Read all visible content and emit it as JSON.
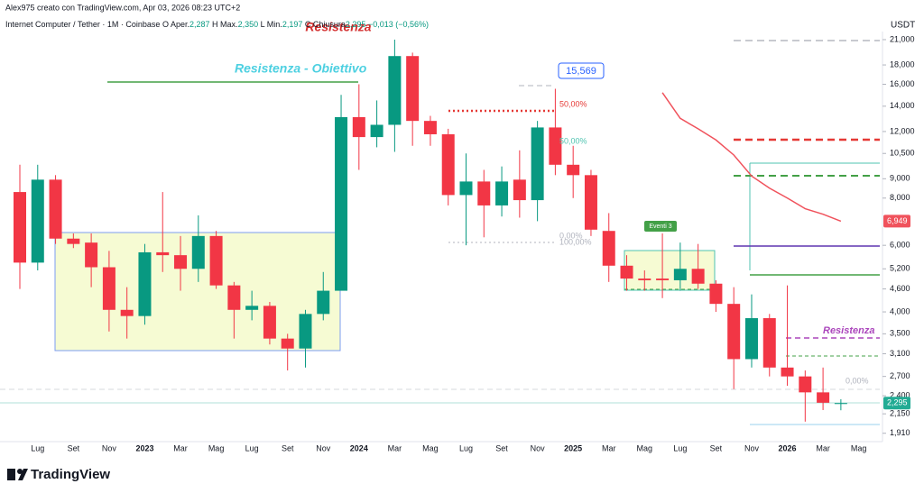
{
  "header": {
    "credit": "Alex975 creato con TradingView.com, Apr 03, 2026 08:23 UTC+2",
    "symbol": "Internet Computer / Tether · 1M · Coinbase",
    "o": "O",
    "o_name": "Aper.",
    "o_val": "2,287",
    "h": "H",
    "h_name": "Max.",
    "h_val": "2,350",
    "l": "L",
    "l_name": "Min.",
    "l_val": "2,197",
    "c": "C",
    "c_name": "Chiusura",
    "c_val": "2,295",
    "change": "−0,013 (−0,56%)"
  },
  "logo": "TradingView",
  "chart_data": {
    "type": "candlestick",
    "y_unit": "USDT",
    "log": true,
    "ylim": [
      1815,
      22060
    ],
    "yticks": [
      {
        "value": 21000,
        "label": "21,000"
      },
      {
        "value": 18000,
        "label": "18,000"
      },
      {
        "value": 16000,
        "label": "16,000"
      },
      {
        "value": 14000,
        "label": "14,000"
      },
      {
        "value": 12000,
        "label": "12,000"
      },
      {
        "value": 10500,
        "label": "10,500"
      },
      {
        "value": 9000,
        "label": "9,000"
      },
      {
        "value": 8000,
        "label": "8,000"
      },
      {
        "value": 6000,
        "label": "6,000"
      },
      {
        "value": 5200,
        "label": "5,200"
      },
      {
        "value": 4600,
        "label": "4,600"
      },
      {
        "value": 4000,
        "label": "4,000"
      },
      {
        "value": 3500,
        "label": "3,500"
      },
      {
        "value": 3100,
        "label": "3,100"
      },
      {
        "value": 2700,
        "label": "2,700"
      },
      {
        "value": 2400,
        "label": "2,400"
      },
      {
        "value": 2150,
        "label": "2,150"
      },
      {
        "value": 1910,
        "label": "1,910"
      }
    ],
    "categories": [
      null,
      "Lug",
      null,
      "Set",
      null,
      "Nov",
      null,
      "2023",
      null,
      "Mar",
      null,
      "Mag",
      null,
      "Lug",
      null,
      "Set",
      null,
      "Nov",
      null,
      "2024",
      null,
      "Mar",
      null,
      "Mag",
      null,
      "Lug",
      null,
      "Set",
      null,
      "Nov",
      null,
      "2025",
      null,
      "Mar",
      null,
      "Mag",
      null,
      "Lug",
      null,
      "Set",
      null,
      "Nov",
      null,
      "2026",
      null,
      "Mar",
      null,
      "Mag"
    ],
    "up_color": "#089981",
    "down_color": "#f23645",
    "open": [
      8300,
      5400,
      8950,
      6250,
      6100,
      5250,
      4050,
      3900,
      5750,
      5650,
      5200,
      6350,
      4700,
      4050,
      4150,
      3400,
      3200,
      3950,
      4550,
      13100,
      11600,
      12500,
      19000,
      12800,
      11800,
      8150,
      8850,
      7650,
      8950,
      7900,
      12300,
      9800,
      9200,
      6550,
      5300,
      4900,
      4900,
      4850,
      5200,
      4750,
      4200,
      3000,
      3850,
      2850,
      2700,
      2450,
      2287,
      null
    ],
    "high": [
      9800,
      9800,
      9200,
      6450,
      6450,
      5800,
      4650,
      6050,
      8300,
      6350,
      7200,
      6550,
      4800,
      4550,
      4250,
      3500,
      4050,
      5100,
      15000,
      16000,
      14500,
      21000,
      19400,
      13200,
      12200,
      10500,
      9500,
      9700,
      10700,
      12800,
      15569,
      11000,
      9500,
      7300,
      5650,
      5150,
      6450,
      6100,
      6050,
      4850,
      4650,
      4450,
      3950,
      4700,
      2800,
      2850,
      2350,
      null
    ],
    "low": [
      4600,
      5150,
      6050,
      5900,
      4650,
      3550,
      3400,
      3700,
      5100,
      4550,
      4800,
      4600,
      3400,
      3800,
      3280,
      2800,
      2850,
      3800,
      4600,
      9500,
      10900,
      10600,
      11000,
      11000,
      7650,
      6000,
      6300,
      7150,
      7100,
      6950,
      9200,
      8000,
      6350,
      4800,
      4550,
      4550,
      4350,
      4550,
      4600,
      4000,
      2500,
      2850,
      2700,
      2550,
      2050,
      2200,
      2197,
      null
    ],
    "close": [
      5400,
      8950,
      6250,
      6050,
      5250,
      4050,
      3900,
      5750,
      5650,
      5200,
      6350,
      4700,
      4050,
      4150,
      3400,
      3200,
      3950,
      4550,
      13100,
      11600,
      12500,
      19000,
      12800,
      11800,
      8150,
      8850,
      7650,
      8850,
      7900,
      12300,
      9800,
      9200,
      6600,
      5300,
      4900,
      4850,
      4850,
      5200,
      4750,
      4200,
      3000,
      3850,
      2850,
      2700,
      2450,
      2300,
      2295,
      null
    ],
    "line": {
      "color": "#f0525c",
      "values": [
        null,
        null,
        null,
        null,
        null,
        null,
        null,
        null,
        null,
        null,
        null,
        null,
        null,
        null,
        null,
        null,
        null,
        null,
        null,
        null,
        null,
        null,
        null,
        null,
        null,
        null,
        null,
        null,
        null,
        null,
        null,
        null,
        null,
        null,
        null,
        null,
        15200,
        13000,
        12200,
        11400,
        10400,
        9150,
        8500,
        8000,
        7500,
        7250,
        6949,
        null
      ]
    },
    "price_labels": [
      {
        "value": 6949,
        "label": "6,949",
        "color": "#f0525c"
      },
      {
        "value": 2295,
        "label": "2,295",
        "color": "#22ab94"
      }
    ],
    "annotations": {
      "resistenza_top": "Resistenza",
      "obiettivo": "Resistenza - Obiettivo",
      "peak": "15,569",
      "fib50_red": "50,00%",
      "fib50_teal": "50,00%",
      "fib0": "0,00%",
      "fib100": "100,00%",
      "eventi": "Eventi 3",
      "resistenza_right": "Resistenza",
      "fib0_right": "0,00%"
    }
  }
}
